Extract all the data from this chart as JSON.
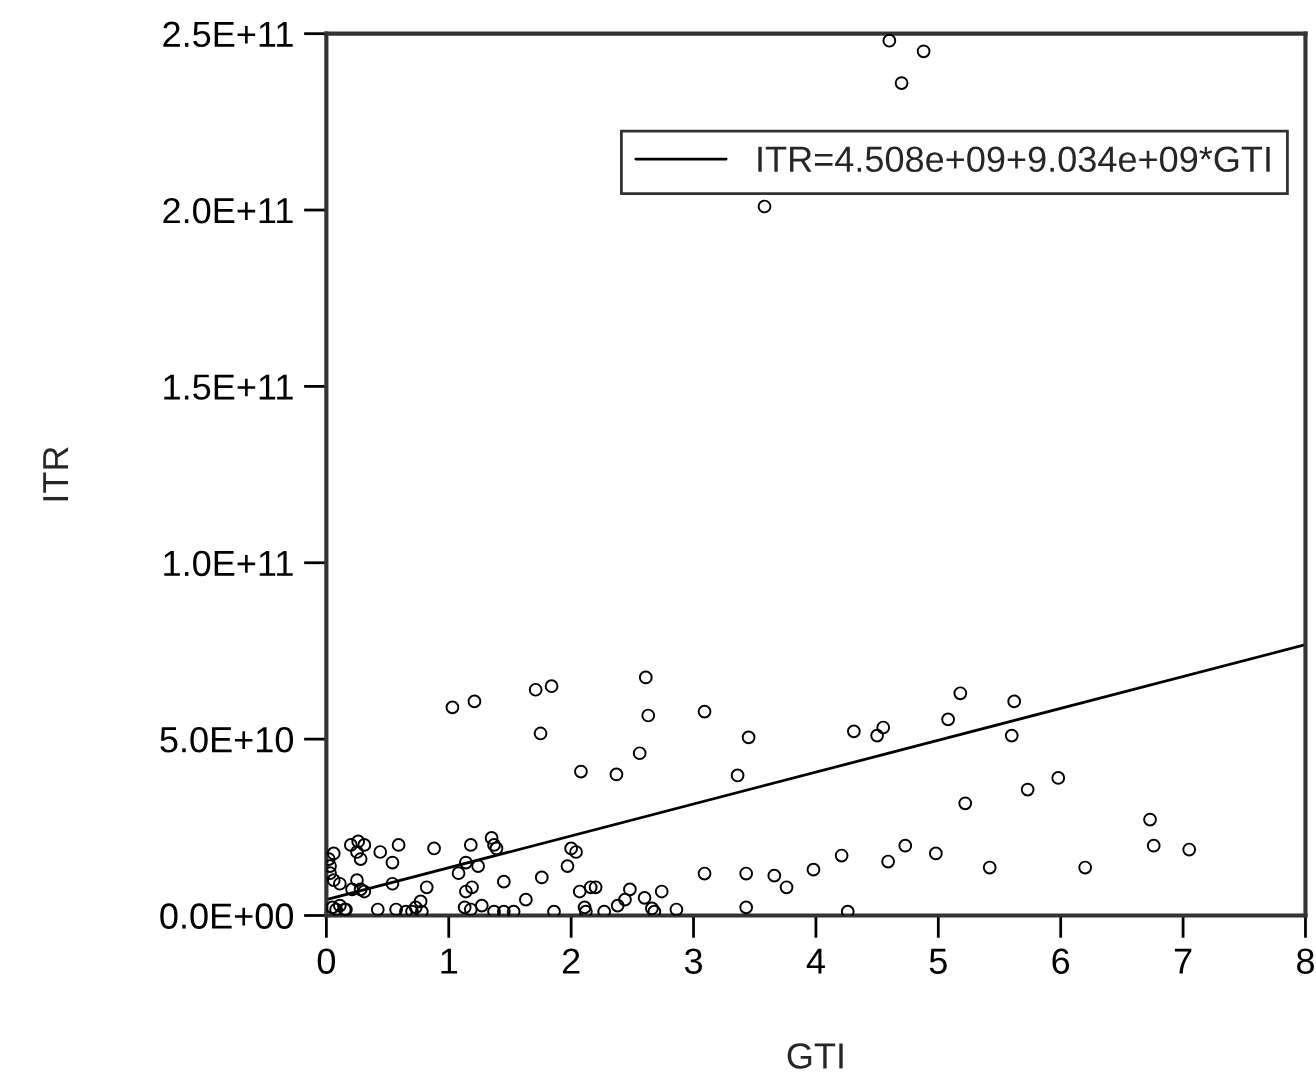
{
  "chart_data": {
    "type": "scatter",
    "xlabel": "GTI",
    "ylabel": "ITR",
    "xlim": [
      0,
      8
    ],
    "xticks": [
      0,
      1,
      2,
      3,
      4,
      5,
      6,
      7,
      8
    ],
    "ylim": [
      0,
      250000000000
    ],
    "yticks": [
      {
        "value": 0,
        "label": "0.0E+00"
      },
      {
        "value": 50000000000,
        "label": "5.0E+10"
      },
      {
        "value": 100000000000,
        "label": "1.0E+11"
      },
      {
        "value": 150000000000,
        "label": "1.5E+11"
      },
      {
        "value": 200000000000,
        "label": "2.0E+11"
      },
      {
        "value": 250000000000,
        "label": "2.5E+11"
      }
    ],
    "grid": false,
    "legend": "top right",
    "series": [
      {
        "color": "#000000",
        "marker": "circle",
        "x": [
          2.08,
          2.37,
          0.06,
          0.2,
          0.26,
          0.31,
          0.25,
          0.28,
          0.44,
          0.54,
          0.59,
          0.88,
          1.18,
          1.35,
          1.37,
          1.39,
          1.14,
          1.08,
          1.24,
          2.0,
          2.04,
          1.97,
          0.03,
          0.06,
          0.11,
          0.25,
          0.28,
          0.21,
          0.31,
          0.54,
          0.82,
          1.14,
          1.19,
          1.45,
          1.76,
          2.16,
          2.2,
          2.07,
          2.48,
          2.6,
          2.66,
          2.38,
          2.44,
          1.63,
          1.27,
          1.13,
          1.18,
          1.37,
          1.45,
          1.53,
          1.86,
          2.11,
          2.12,
          2.27,
          0.42,
          0.57,
          0.65,
          0.7,
          0.73,
          0.77,
          0.78,
          0.11,
          0.15,
          0.16,
          0.08,
          0.05,
          0.03,
          0.02,
          3.36,
          5.22,
          2.74,
          2.68,
          2.86,
          3.09,
          3.43,
          3.43,
          3.66,
          3.76,
          3.98,
          4.21,
          4.26,
          4.59,
          4.73,
          4.98,
          5.42,
          5.73,
          5.98,
          6.2,
          6.73,
          6.76,
          7.05,
          1.03,
          1.21,
          1.71,
          1.84,
          1.75,
          2.61,
          2.63,
          3.09,
          2.56,
          3.45,
          4.31,
          4.5,
          4.55,
          5.08,
          5.18,
          5.62,
          5.6,
          4.6,
          4.88,
          4.7,
          3.58
        ],
        "values": [
          40800000000,
          40000000000,
          17600000000,
          20000000000,
          21000000000,
          20000000000,
          18000000000,
          16000000000,
          18000000000,
          15000000000,
          20000000000,
          19000000000,
          20000000000,
          22000000000,
          20000000000,
          19000000000,
          15000000000,
          12000000000,
          14000000000,
          19000000000,
          18000000000,
          14000000000,
          14000000000,
          10000000000,
          9000000000,
          10000000000,
          7400000000,
          7400000000,
          6800000000,
          9000000000,
          8000000000,
          6800000000,
          8000000000,
          9600000000,
          10800000000,
          8000000000,
          8000000000,
          6800000000,
          7400000000,
          5000000000,
          2000000000,
          2800000000,
          4500000000,
          4500000000,
          2800000000,
          2300000000,
          1700000000,
          1100000000,
          1100000000,
          1100000000,
          1100000000,
          2300000000,
          1100000000,
          1100000000,
          1700000000,
          1700000000,
          1100000000,
          1100000000,
          2300000000,
          4000000000,
          1100000000,
          2800000000,
          1700000000,
          1700000000,
          1700000000,
          2300000000,
          12000000000,
          16000000000,
          39700000000,
          31800000000,
          6800000000,
          1100000000,
          1700000000,
          11900000000,
          11900000000,
          2300000000,
          11300000000,
          8000000000,
          13000000000,
          17000000000,
          1100000000,
          15300000000,
          19800000000,
          17600000000,
          13600000000,
          35700000000,
          39000000000,
          13600000000,
          27200000000,
          19800000000,
          18700000000,
          59000000000,
          60700000000,
          64000000000,
          65000000000,
          51600000000,
          67500000000,
          56700000000,
          57800000000,
          46000000000,
          50500000000,
          52200000000,
          51000000000,
          53300000000,
          55600000000,
          63000000000,
          60700000000,
          51000000000,
          248000000000,
          245000000000,
          236000000000,
          201000000000
        ]
      },
      {
        "type": "line",
        "name": "ITR=4.508e+09+9.034e+09*GTI",
        "color": "#000000",
        "line_style": "solid",
        "x": [
          0,
          8
        ],
        "values": [
          4500000000,
          76800000000
        ]
      }
    ]
  }
}
